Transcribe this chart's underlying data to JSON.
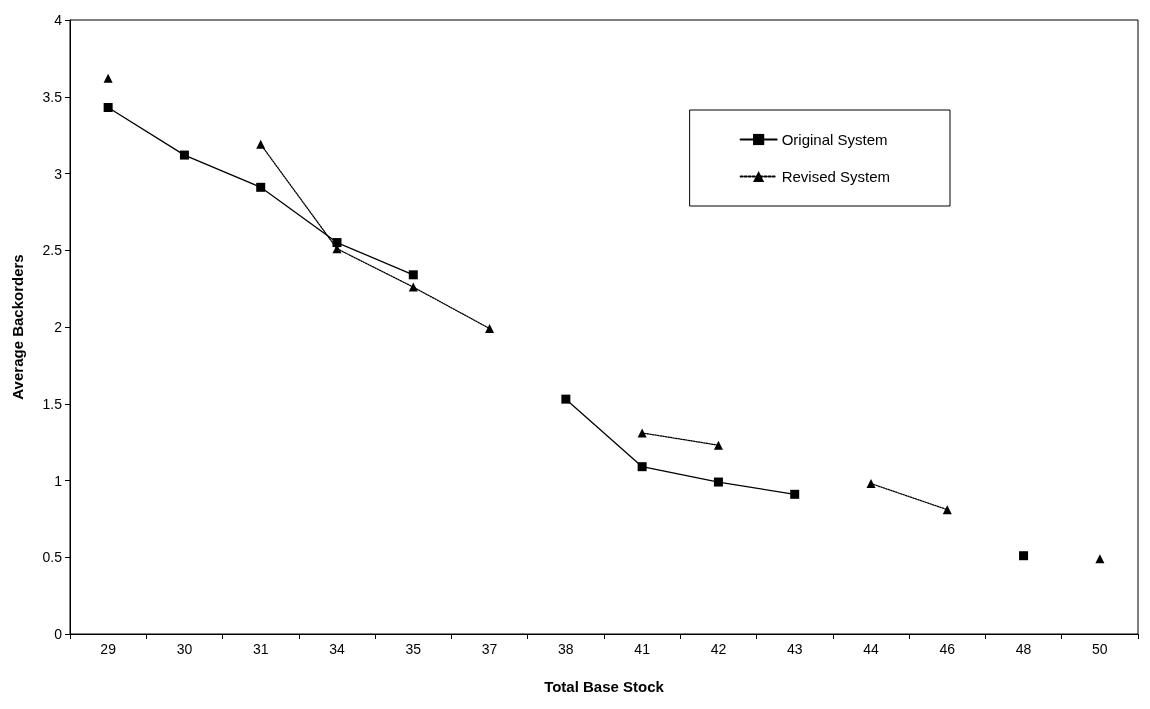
{
  "chart_data": {
    "type": "line",
    "xlabel": "Total Base Stock",
    "ylabel": "Average Backorders",
    "categories": [
      "29",
      "30",
      "31",
      "34",
      "35",
      "37",
      "38",
      "41",
      "42",
      "43",
      "44",
      "46",
      "48",
      "50"
    ],
    "series": [
      {
        "name": "Original System",
        "color": "#000000",
        "marker": "square",
        "line_style": "solid",
        "values": [
          3.43,
          3.12,
          2.91,
          2.55,
          2.34,
          null,
          1.53,
          1.09,
          0.99,
          0.91,
          null,
          null,
          0.51,
          null
        ]
      },
      {
        "name": "Revised System",
        "color": "#000000",
        "marker": "triangle",
        "line_style": "dotted",
        "values": [
          3.62,
          null,
          3.19,
          2.51,
          2.26,
          1.99,
          null,
          1.31,
          1.23,
          null,
          0.98,
          0.81,
          null,
          0.49
        ]
      }
    ],
    "ylim": [
      0,
      4
    ],
    "yticks": [
      0,
      0.5,
      1,
      1.5,
      2,
      2.5,
      3,
      3.5,
      4
    ],
    "grid": false,
    "legend": "top right"
  }
}
